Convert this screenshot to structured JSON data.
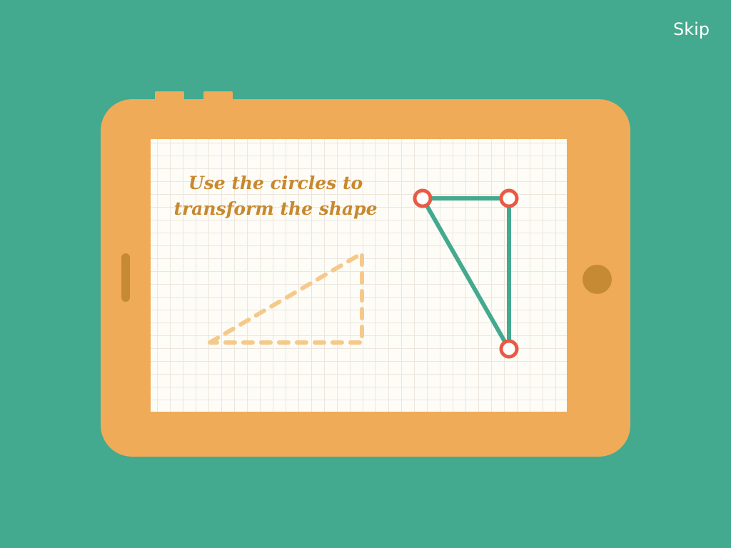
{
  "skip_label": "Skip",
  "instructions": {
    "line1": "Use the circles to",
    "line2": "transform the shape"
  },
  "colors": {
    "background": "#43a98f",
    "device": "#f0ab59",
    "device_accent": "#c68a35",
    "screen": "#fdfcf7",
    "text": "#c8882e",
    "target_outline": "#f5c98a",
    "shape_stroke": "#43a98f",
    "handle_stroke": "#e85a45"
  },
  "icons": {
    "skip": "skip-link",
    "home": "home-button-icon"
  }
}
